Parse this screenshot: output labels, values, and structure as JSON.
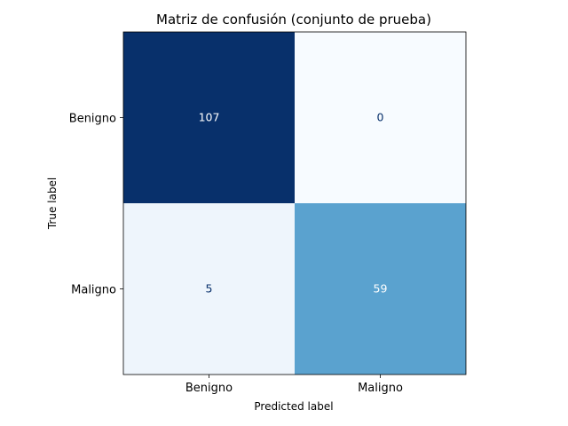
{
  "chart_data": {
    "type": "heatmap",
    "title": "Matriz de confusión (conjunto de prueba)",
    "xlabel": "Predicted label",
    "ylabel": "True label",
    "x_categories": [
      "Benigno",
      "Maligno"
    ],
    "y_categories": [
      "Benigno",
      "Maligno"
    ],
    "values": [
      [
        107,
        0
      ],
      [
        5,
        59
      ]
    ],
    "value_range": [
      0,
      107
    ],
    "colormap": "Blues",
    "colors": {
      "low": "#f7fbff",
      "high": "#08306b",
      "text_on_dark": "#ffffff",
      "text_on_light": "#08306b"
    }
  }
}
